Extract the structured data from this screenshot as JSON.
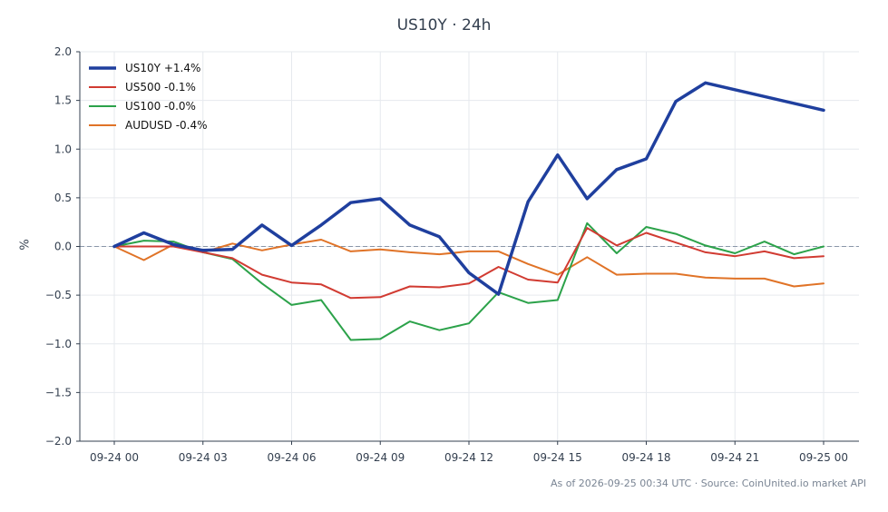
{
  "title": "US10Y · 24h",
  "footer": "As of 2026-09-25 00:34 UTC · Source: CoinUnited.io market API",
  "chart_data": {
    "type": "line",
    "title": "US10Y · 24h",
    "xlabel": "",
    "ylabel": "%",
    "ylim": [
      -2.0,
      2.0
    ],
    "yticks": [
      2.0,
      1.5,
      1.0,
      0.5,
      0.0,
      -0.5,
      -1.0,
      -1.5,
      -2.0
    ],
    "ytick_labels": [
      "2.0",
      "1.5",
      "1.0",
      "0.5",
      "0.0",
      "−0.5",
      "−1.0",
      "−1.5",
      "−2.0"
    ],
    "xtick_labels": [
      "09-24 00",
      "09-24 03",
      "09-24 06",
      "09-24 09",
      "09-24 12",
      "09-24 15",
      "09-24 18",
      "09-24 21",
      "09-25 00"
    ],
    "xtick_hours": [
      0,
      3,
      6,
      9,
      12,
      15,
      18,
      21,
      24
    ],
    "grid": true,
    "zero_line": true,
    "legend_position": "top-left",
    "x_hours": [
      0,
      1,
      2,
      3,
      4,
      5,
      6,
      7,
      8,
      9,
      10,
      11,
      12,
      13,
      14,
      15,
      16,
      17,
      18,
      19,
      20,
      21,
      22,
      23,
      24
    ],
    "series": [
      {
        "name": "US10Y +1.4%",
        "color": "#1f3f9e",
        "width": 3.5,
        "x_hours": [
          0,
          1,
          2,
          3,
          4,
          5,
          6,
          7,
          8,
          9,
          10,
          11,
          12,
          13,
          14,
          15,
          16,
          17,
          18,
          19,
          20,
          24
        ],
        "values": [
          0.0,
          0.14,
          0.02,
          -0.04,
          -0.03,
          0.22,
          0.01,
          0.22,
          0.45,
          0.49,
          0.22,
          0.1,
          -0.27,
          -0.49,
          0.46,
          0.94,
          0.49,
          0.79,
          0.9,
          1.49,
          1.68,
          1.4
        ]
      },
      {
        "name": "US500 -0.1%",
        "color": "#d13b32",
        "width": 2,
        "x_hours": [
          0,
          1,
          2,
          3,
          4,
          5,
          6,
          7,
          8,
          9,
          10,
          11,
          12,
          13,
          14,
          15,
          16,
          17,
          18,
          19,
          20,
          21,
          22,
          23,
          24
        ],
        "values": [
          0.0,
          0.0,
          0.0,
          -0.06,
          -0.12,
          -0.29,
          -0.37,
          -0.39,
          -0.53,
          -0.52,
          -0.41,
          -0.42,
          -0.38,
          -0.21,
          -0.34,
          -0.37,
          0.19,
          0.01,
          0.14,
          0.04,
          -0.06,
          -0.1,
          -0.05,
          -0.12,
          -0.1
        ]
      },
      {
        "name": "US100 -0.0%",
        "color": "#2ca24a",
        "width": 2,
        "x_hours": [
          0,
          1,
          2,
          3,
          4,
          5,
          6,
          7,
          8,
          9,
          10,
          11,
          12,
          13,
          14,
          15,
          16,
          17,
          18,
          19,
          20,
          21,
          22,
          23,
          24
        ],
        "values": [
          0.0,
          0.06,
          0.05,
          -0.06,
          -0.13,
          -0.38,
          -0.6,
          -0.55,
          -0.96,
          -0.95,
          -0.77,
          -0.86,
          -0.79,
          -0.47,
          -0.58,
          -0.55,
          0.24,
          -0.07,
          0.2,
          0.13,
          0.01,
          -0.07,
          0.05,
          -0.08,
          0.0
        ]
      },
      {
        "name": "AUDUSD -0.4%",
        "color": "#e07327",
        "width": 2,
        "x_hours": [
          0,
          1,
          2,
          3,
          4,
          5,
          6,
          7,
          8,
          9,
          10,
          11,
          12,
          13,
          14,
          15,
          16,
          17,
          18,
          19,
          20,
          21,
          22,
          23,
          24
        ],
        "values": [
          0.0,
          -0.14,
          0.02,
          -0.06,
          0.03,
          -0.04,
          0.02,
          0.07,
          -0.05,
          -0.03,
          -0.06,
          -0.08,
          -0.05,
          -0.05,
          -0.18,
          -0.29,
          -0.11,
          -0.29,
          -0.28,
          -0.28,
          -0.32,
          -0.33,
          -0.33,
          -0.41,
          -0.38
        ]
      }
    ]
  }
}
